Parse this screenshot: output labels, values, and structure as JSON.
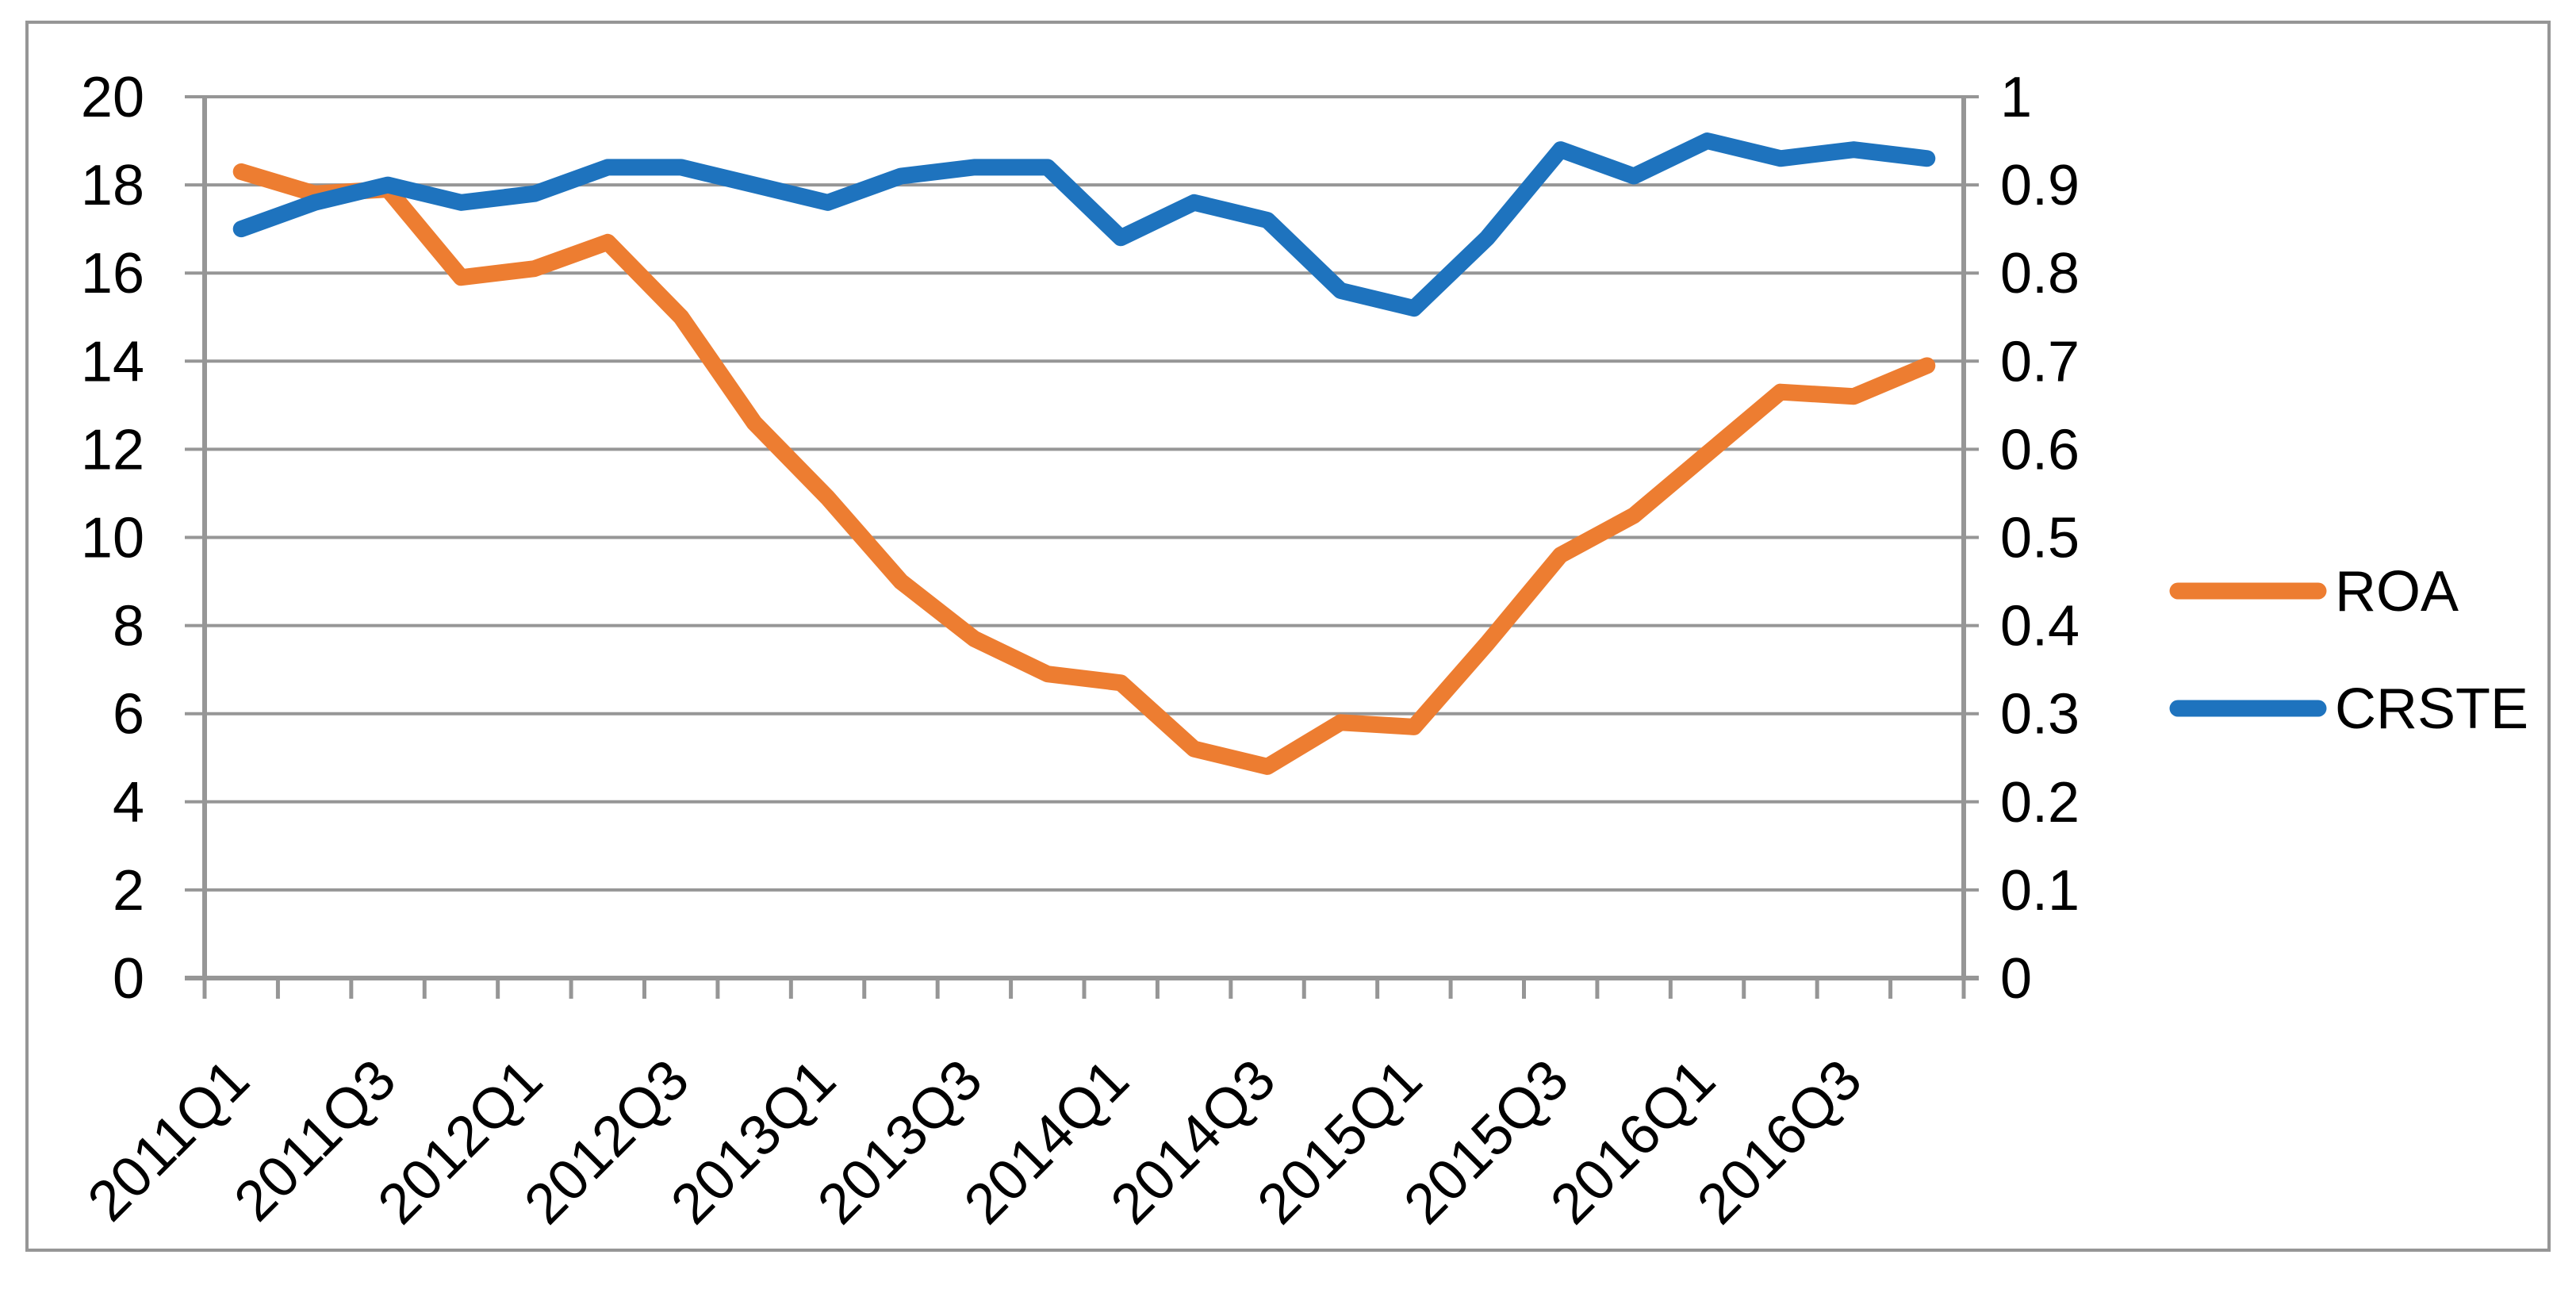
{
  "chart_data": {
    "type": "line",
    "title": "",
    "categories": [
      "2011Q1",
      "2011Q2",
      "2011Q3",
      "2011Q4",
      "2012Q1",
      "2012Q2",
      "2012Q3",
      "2012Q4",
      "2013Q1",
      "2013Q2",
      "2013Q3",
      "2013Q4",
      "2014Q1",
      "2014Q2",
      "2014Q3",
      "2014Q4",
      "2015Q1",
      "2015Q2",
      "2015Q3",
      "2015Q4",
      "2016Q1",
      "2016Q2",
      "2016Q3",
      "2016Q4"
    ],
    "x_axis": {
      "shown_tick_labels": [
        "2011Q1",
        "2011Q3",
        "2012Q1",
        "2012Q3",
        "2013Q1",
        "2013Q3",
        "2014Q1",
        "2014Q3",
        "2015Q1",
        "2015Q3",
        "2016Q1",
        "2016Q3"
      ],
      "label_every_n_categories": 2,
      "label_rotation_deg": -45
    },
    "y_axis_left": {
      "min": 0,
      "max": 20,
      "step": 2,
      "tick_labels_top_to_bottom": [
        "20",
        "18",
        "16",
        "14",
        "12",
        "10",
        "8",
        "6",
        "4",
        "2",
        "0"
      ]
    },
    "y_axis_right": {
      "min": 0,
      "max": 1,
      "step": 0.1,
      "tick_labels_top_to_bottom": [
        "1",
        "0.9",
        "0.8",
        "0.7",
        "0.6",
        "0.5",
        "0.4",
        "0.3",
        "0.2",
        "0.1",
        "0"
      ]
    },
    "series": [
      {
        "name": "ROA",
        "axis": "left",
        "color": "#ED7D31",
        "values": [
          18.3,
          17.8,
          17.9,
          15.9,
          16.1,
          16.7,
          15.0,
          12.6,
          10.9,
          9.0,
          7.7,
          6.9,
          6.7,
          5.2,
          4.8,
          5.8,
          5.7,
          7.6,
          9.6,
          10.5,
          11.9,
          13.3,
          13.2,
          13.9
        ]
      },
      {
        "name": "CRSTE",
        "axis": "right",
        "color": "#1E73BE",
        "values": [
          0.85,
          0.88,
          0.9,
          0.88,
          0.89,
          0.92,
          0.92,
          0.9,
          0.88,
          0.91,
          0.92,
          0.92,
          0.84,
          0.88,
          0.86,
          0.78,
          0.76,
          0.84,
          0.94,
          0.91,
          0.95,
          0.93,
          0.94,
          0.93
        ]
      }
    ],
    "legend": {
      "position": "right-middle",
      "entries": [
        "ROA",
        "CRSTE"
      ]
    },
    "grid": {
      "shown": true,
      "color": "#969696"
    },
    "axis_line_color": "#969696",
    "outer_border_color": "#969696",
    "background_color": "#FFFFFF",
    "text_color": "#000000"
  }
}
